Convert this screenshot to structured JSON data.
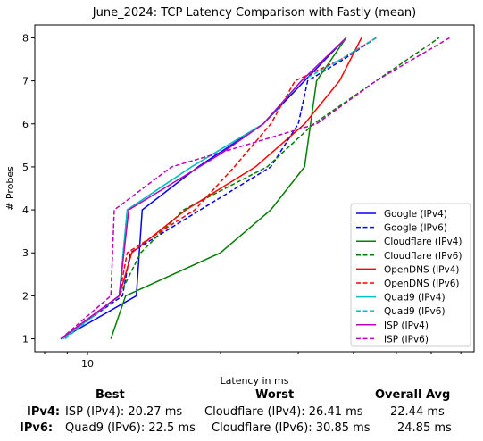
{
  "chart_data": {
    "type": "line",
    "title": "June_2024: TCP Latency Comparison with Fastly (mean)",
    "xlabel": "Latency in ms",
    "ylabel": "# Probes",
    "xscale": "log",
    "xlim": [
      7.6,
      75
    ],
    "ylim": [
      0.7,
      8.3
    ],
    "xticks": [
      {
        "value": 10,
        "label": "10"
      }
    ],
    "yticks": [
      1,
      2,
      3,
      4,
      5,
      6,
      7,
      8
    ],
    "grid": false,
    "legend_position": "lower right",
    "series": [
      {
        "name": "Google (IPv4)",
        "color": "#0000ff",
        "dash": "solid",
        "points": [
          [
            8.7,
            1
          ],
          [
            12.9,
            2
          ],
          [
            13.3,
            4
          ],
          [
            17.8,
            5
          ],
          [
            25,
            6
          ],
          [
            31,
            7
          ],
          [
            38.5,
            8
          ]
        ]
      },
      {
        "name": "Google (IPv6)",
        "color": "#0000ff",
        "dash": "dashed",
        "points": [
          [
            8.7,
            1
          ],
          [
            12,
            2
          ],
          [
            12.5,
            3
          ],
          [
            18,
            4
          ],
          [
            26,
            5
          ],
          [
            30,
            6
          ],
          [
            31.5,
            7
          ],
          [
            38,
            7.5
          ],
          [
            45,
            8
          ]
        ]
      },
      {
        "name": "Cloudflare (IPv4)",
        "color": "#008000",
        "dash": "solid",
        "points": [
          [
            11.3,
            1
          ],
          [
            12.2,
            2
          ],
          [
            20,
            3
          ],
          [
            26,
            4
          ],
          [
            31,
            5
          ],
          [
            33,
            7
          ],
          [
            38.5,
            8
          ]
        ]
      },
      {
        "name": "Cloudflare (IPv6)",
        "color": "#008000",
        "dash": "dashed",
        "points": [
          [
            8.7,
            1
          ],
          [
            11.8,
            2
          ],
          [
            13.2,
            3
          ],
          [
            16.5,
            4
          ],
          [
            25.5,
            5
          ],
          [
            32.5,
            6
          ],
          [
            45,
            7
          ],
          [
            62.5,
            8
          ]
        ]
      },
      {
        "name": "OpenDNS (IPv4)",
        "color": "#ff0000",
        "dash": "solid",
        "points": [
          [
            8.7,
            1
          ],
          [
            11.8,
            2
          ],
          [
            12.6,
            3
          ],
          [
            16.7,
            4
          ],
          [
            24,
            5
          ],
          [
            31,
            6
          ],
          [
            37.2,
            7
          ],
          [
            41.7,
            8
          ]
        ]
      },
      {
        "name": "OpenDNS (IPv6)",
        "color": "#ff0000",
        "dash": "dashed",
        "points": [
          [
            8.7,
            1
          ],
          [
            11.8,
            2
          ],
          [
            12.3,
            3
          ],
          [
            17.5,
            4
          ],
          [
            21.5,
            5
          ],
          [
            26,
            6
          ],
          [
            29.5,
            7
          ],
          [
            37.5,
            7.5
          ],
          [
            45,
            8
          ]
        ]
      },
      {
        "name": "Quad9 (IPv4)",
        "color": "#00bfbf",
        "dash": "solid",
        "points": [
          [
            8.8,
            1
          ],
          [
            11.8,
            2
          ],
          [
            12.3,
            4
          ],
          [
            17.2,
            5
          ],
          [
            25,
            6
          ],
          [
            30.5,
            7
          ],
          [
            38.5,
            8
          ]
        ]
      },
      {
        "name": "Quad9 (IPv6)",
        "color": "#00bfbf",
        "dash": "dashed",
        "points": [
          [
            8.9,
            1
          ],
          [
            11.8,
            2
          ],
          [
            12.3,
            4
          ],
          [
            17.2,
            5
          ],
          [
            25,
            6
          ],
          [
            30.5,
            7
          ],
          [
            37.5,
            7.5
          ],
          [
            45,
            8
          ]
        ]
      },
      {
        "name": "ISP (IPv4)",
        "color": "#bf00bf",
        "dash": "solid",
        "points": [
          [
            8.7,
            1
          ],
          [
            11.8,
            2
          ],
          [
            12.4,
            4
          ],
          [
            20,
            5.3
          ],
          [
            25,
            6
          ],
          [
            30.5,
            7
          ],
          [
            38.5,
            8
          ]
        ]
      },
      {
        "name": "ISP (IPv6)",
        "color": "#bf00bf",
        "dash": "dashed",
        "points": [
          [
            8.7,
            1
          ],
          [
            11.3,
            2
          ],
          [
            11.5,
            4
          ],
          [
            15.5,
            5
          ],
          [
            19.5,
            5.3
          ],
          [
            33,
            6
          ],
          [
            45,
            7
          ],
          [
            66,
            8
          ]
        ]
      }
    ]
  },
  "summary": {
    "headers": {
      "best": "Best",
      "worst": "Worst",
      "avg": "Overall Avg"
    },
    "ipv4": {
      "label": "IPv4",
      "best": "ISP (IPv4): 20.27 ms",
      "worst": "Cloudflare (IPv4): 26.41 ms",
      "avg": "22.44 ms"
    },
    "ipv6": {
      "label": "IPv6",
      "best": "Quad9 (IPv6): 22.5 ms",
      "worst": "Cloudflare (IPv6): 30.85 ms",
      "avg": "24.85 ms"
    }
  }
}
